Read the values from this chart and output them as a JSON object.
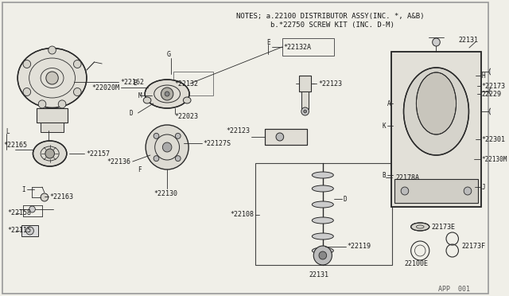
{
  "bg_color": "#f0efe8",
  "line_color": "#2a2a2a",
  "text_color": "#1a1a1a",
  "notes_line1": "NOTES; a.22100 DISTRIBUTOR ASSY(INC. *, A&B)",
  "notes_line2": "        b.*22750 SCREW KIT (INC. D-M)",
  "footer": "APP  001",
  "border_color": "#888888"
}
